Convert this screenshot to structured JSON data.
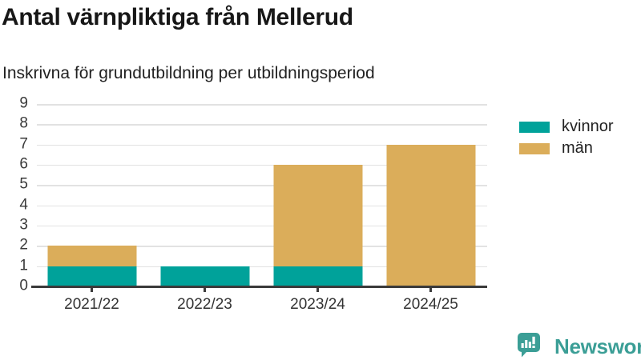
{
  "header": {
    "title": "Antal värnpliktiga från Mellerud",
    "subtitle": "Inskrivna för grundutbildning per utbildningsperiod"
  },
  "chart_data": {
    "type": "bar",
    "stacked": true,
    "categories": [
      "2021/22",
      "2022/23",
      "2023/24",
      "2024/25"
    ],
    "series": [
      {
        "name": "kvinnor",
        "color": "#00a29a",
        "values": [
          1,
          1,
          1,
          0
        ]
      },
      {
        "name": "män",
        "color": "#dbad5a",
        "values": [
          1,
          0,
          5,
          7
        ]
      }
    ],
    "totals": [
      2,
      1,
      6,
      7
    ],
    "title": "Antal värnpliktiga från Mellerud",
    "subtitle": "Inskrivna för grundutbildning per utbildningsperiod",
    "xlabel": "",
    "ylabel": "",
    "ylim": [
      0,
      9
    ],
    "yticks": [
      0,
      1,
      2,
      3,
      4,
      5,
      6,
      7,
      8,
      9
    ],
    "grid": true,
    "legend_position": "right"
  },
  "legend": {
    "items": [
      {
        "label": "kvinnor",
        "color": "#00a29a"
      },
      {
        "label": "män",
        "color": "#dbad5a"
      }
    ]
  },
  "footer": {
    "brand": "Newsworthy",
    "brand_color": "#3b9e96"
  },
  "colors": {
    "gridline": "#e2e2e2",
    "axis": "#3a3a3a",
    "title_text": "#171717",
    "kvinnor": "#00a29a",
    "man": "#dbad5a"
  }
}
